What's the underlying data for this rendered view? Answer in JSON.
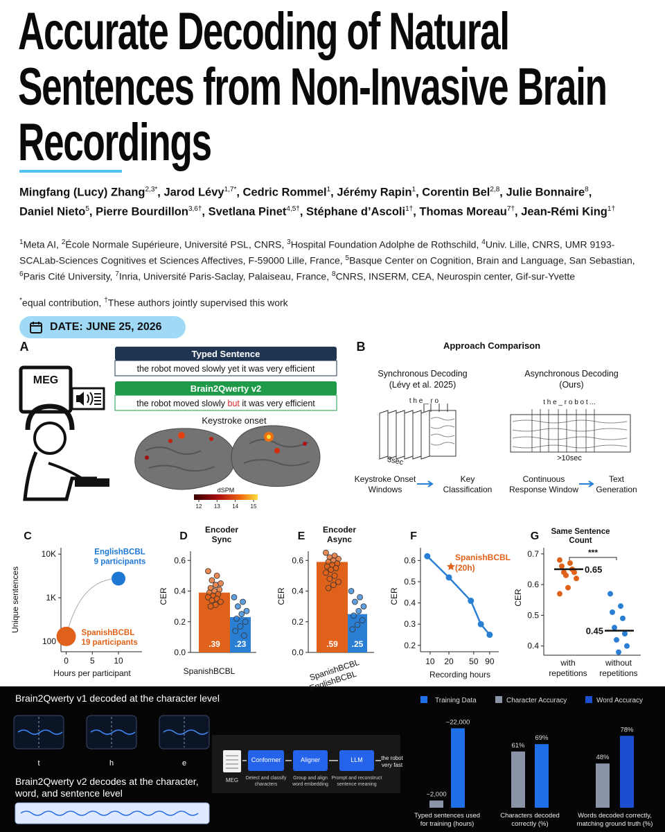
{
  "title": "Accurate Decoding of Natural Sentences from Non-Invasive Brain Recordings",
  "authors": {
    "separator": ", ",
    "list": [
      {
        "name": "Mingfang (Lucy) Zhang",
        "sup": "2,3*"
      },
      {
        "name": "Jarod Lévy",
        "sup": "1,7*"
      },
      {
        "name": "Cedric Rommel",
        "sup": "1"
      },
      {
        "name": "Jérémy Rapin",
        "sup": "1"
      },
      {
        "name": "Corentin Bel",
        "sup": "2,8"
      },
      {
        "name": "Julie Bonnaire",
        "sup": "8"
      },
      {
        "name": "Daniel Nieto",
        "sup": "5"
      },
      {
        "name": "Pierre Bourdillon",
        "sup": "3,6†"
      },
      {
        "name": "Svetlana Pinet",
        "sup": "4,5†"
      },
      {
        "name": "Stéphane d’Ascoli",
        "sup": "1†"
      },
      {
        "name": "Thomas Moreau",
        "sup": "7†"
      },
      {
        "name": "Jean-Rémi King",
        "sup": "1†"
      }
    ]
  },
  "affiliations": [
    {
      "sup": "1",
      "text": "Meta AI, "
    },
    {
      "sup": "2",
      "text": "École Normale Supérieure, Université PSL, CNRS, "
    },
    {
      "sup": "3",
      "text": "Hospital Foundation Adolphe de Rothschild, "
    },
    {
      "sup": "4",
      "text": "Univ. Lille, CNRS, UMR 9193-SCALab-Sciences Cognitives et Sciences Affectives, F-59000 Lille, France, "
    },
    {
      "sup": "5",
      "text": "Basque Center on Cognition, Brain and Language, San Sebastian, "
    },
    {
      "sup": "6",
      "text": "Paris Cité University, "
    },
    {
      "sup": "7",
      "text": "Inria, Université Paris-Saclay, Palaiseau, France, "
    },
    {
      "sup": "8",
      "text": "CNRS, INSERM, CEA, Neurospin center, Gif-sur-Yvette"
    }
  ],
  "notes": [
    {
      "sup": "*",
      "text": "equal contribution, "
    },
    {
      "sup": "†",
      "text": "These authors jointly supervised this work"
    }
  ],
  "date": "DATE: JUNE 25, 2026",
  "figure": {
    "panel_a": {
      "label": "A",
      "device": "MEG",
      "typed": {
        "header": "Typed Sentence",
        "text": "the robot moved slowly yet it was very efficient"
      },
      "decoded": {
        "header": "Brain2Qwerty v2",
        "parts": [
          {
            "text": "the robot moved slowly ",
            "error": false
          },
          {
            "text": "but",
            "error": true
          },
          {
            "text": " it was very efficient",
            "error": false
          }
        ]
      },
      "caption": "Keystroke onset",
      "colorbar": {
        "label": "dSPM",
        "ticks": [
          12,
          13,
          14,
          15
        ]
      }
    },
    "panel_b": {
      "label": "B",
      "title": "Approach Comparison",
      "sync": {
        "title": "Synchronous Decoding",
        "subtitle": "(Lévy et al. 2025)",
        "chars": "t h e _ r o",
        "duration": "3sec",
        "flow": [
          [
            "Keystroke Onset",
            "Windows"
          ],
          [
            "Key",
            "Classification"
          ]
        ]
      },
      "async": {
        "title": "Asynchronous Decoding",
        "subtitle": "(Ours)",
        "chars": "t h e _ r o b o t ...",
        "duration": ">10sec",
        "flow": [
          [
            "Continuous",
            "Response Window"
          ],
          [
            "Text",
            "Generation"
          ]
        ]
      }
    },
    "panel_c": {
      "label": "C",
      "type": "scatter",
      "ylabel": "Unique sentences",
      "xlabel": "Hours per participant",
      "log_y": true,
      "xlim": [
        -1,
        14.5
      ],
      "xticks": [
        0,
        5,
        10
      ],
      "ylim": [
        58,
        14000
      ],
      "yticks": [
        100,
        {
          "value": 1000,
          "label": "1K"
        },
        {
          "value": 10000,
          "label": "10K"
        }
      ],
      "points": [
        {
          "name": "EnglishBCBL",
          "detail": "9 participants",
          "x": 10,
          "y": 2750,
          "color": "#1f77d4"
        },
        {
          "name": "SpanishBCBL",
          "detail": "19 participants",
          "x": 0,
          "y": 130,
          "color": "#e0621a"
        }
      ]
    },
    "panel_d": {
      "label": "D",
      "type": "bar",
      "title": [
        "Encoder",
        "Sync"
      ],
      "ylabel": "CER",
      "ylim": [
        0,
        0.66
      ],
      "yticks": [
        {
          "value": 0,
          "label": "0.0"
        },
        0.2,
        0.4,
        0.6
      ],
      "xlabels": [
        "SpanishBCBL"
      ],
      "series": [
        {
          "color": "#e0621a",
          "value": 0.39,
          "value_label": ".39",
          "points": [
            0.53,
            0.5,
            0.47,
            0.45,
            0.44,
            0.42,
            0.41,
            0.4,
            0.39,
            0.38,
            0.37,
            0.36,
            0.35,
            0.34,
            0.33,
            0.31,
            0.3
          ]
        },
        {
          "color": "#2a7fd4",
          "value": 0.23,
          "value_label": ".23",
          "points": [
            0.36,
            0.33,
            0.3,
            0.27,
            0.25,
            0.22,
            0.2,
            0.17,
            0.14,
            0.11
          ]
        }
      ]
    },
    "panel_e": {
      "label": "E",
      "type": "bar",
      "title": [
        "Encoder",
        "Async"
      ],
      "ylabel": "CER",
      "ylim": [
        0,
        0.66
      ],
      "yticks": [
        {
          "value": 0,
          "label": "0.0"
        },
        0.2,
        0.4,
        0.6
      ],
      "xlabels": [
        "SpanishBCBL",
        "EnglishBCBL"
      ],
      "series": [
        {
          "color": "#e0621a",
          "value": 0.59,
          "value_label": ".59",
          "points": [
            0.65,
            0.63,
            0.62,
            0.61,
            0.6,
            0.59,
            0.58,
            0.57,
            0.56,
            0.55,
            0.54,
            0.52,
            0.5,
            0.48,
            0.46,
            0.44,
            0.42
          ]
        },
        {
          "color": "#2a7fd4",
          "value": 0.25,
          "value_label": ".25",
          "points": [
            0.4,
            0.36,
            0.33,
            0.3,
            0.27,
            0.24,
            0.21,
            0.18,
            0.15
          ]
        }
      ]
    },
    "panel_f": {
      "label": "F",
      "type": "line",
      "ylabel": "CER",
      "xlabel": "Recording hours",
      "log_x": true,
      "xlim": [
        7,
        126
      ],
      "xticks": [
        10,
        20,
        50,
        90
      ],
      "ylim": [
        0.17,
        0.66
      ],
      "yticks": [
        0.2,
        0.3,
        0.4,
        0.5,
        0.6
      ],
      "x": [
        9,
        20,
        45,
        65,
        90
      ],
      "values": [
        0.62,
        0.52,
        0.41,
        0.3,
        0.25
      ],
      "color": "#2a7fd4",
      "annotation": {
        "text": [
          "SpanishBCBL",
          "(20h)"
        ],
        "color": "#e0621a"
      }
    },
    "panel_g": {
      "label": "G",
      "type": "strip",
      "title": [
        "Same Sentence",
        "Count"
      ],
      "ylabel": "CER",
      "ylim": [
        0.37,
        0.72
      ],
      "yticks": [
        0.4,
        0.5,
        0.6,
        0.7
      ],
      "significance": "***",
      "groups": [
        {
          "label": [
            "with",
            "repetitions"
          ],
          "color": "#e0621a",
          "mean": 0.65,
          "points": [
            0.68,
            0.67,
            0.66,
            0.65,
            0.64,
            0.64,
            0.63,
            0.62,
            0.59,
            0.57
          ]
        },
        {
          "label": [
            "without",
            "repetitions"
          ],
          "color": "#2a7fd4",
          "mean": 0.45,
          "points": [
            0.57,
            0.53,
            0.51,
            0.49,
            0.46,
            0.44,
            0.42,
            0.4,
            0.38
          ]
        }
      ]
    }
  },
  "summary": {
    "v1": {
      "heading": "Brain2Qwerty v1 decoded at the character level",
      "letters": [
        "t",
        "h",
        "e"
      ]
    },
    "v2": {
      "heading": [
        "Brain2Qwerty v2 decodes at the character,",
        "word, and sentence level"
      ]
    },
    "pipeline": {
      "input": "MEG",
      "steps": [
        {
          "name": "Conformer",
          "desc": [
            "Detect and classify",
            "characters"
          ]
        },
        {
          "name": "Aligner",
          "desc": [
            "Group and align",
            "word embedding"
          ]
        },
        {
          "name": "LLM",
          "desc": [
            "Prompt and reconstruct",
            "sentence meaning"
          ]
        }
      ],
      "output": [
        "the robot",
        "very fast"
      ]
    },
    "results": {
      "legend": [
        {
          "name": "Training Data",
          "color": "#1f6fe8"
        },
        {
          "name": "Character Accuracy",
          "color": "#8a94a6"
        },
        {
          "name": "Word Accuracy",
          "color": "#1b4fd0"
        }
      ],
      "groups": [
        {
          "caption": [
            "Typed sentences used",
            "for training (hours)"
          ],
          "ylim": [
            0,
            24000
          ],
          "values": [
            2000,
            22000
          ],
          "value_labels": [
            "~2,000",
            "~22,000"
          ],
          "colors": [
            "#8a94a6",
            "#1f6fe8"
          ]
        },
        {
          "caption": [
            "Characters decoded",
            "correctly (%)"
          ],
          "ylim": [
            0,
            94
          ],
          "values": [
            61,
            69
          ],
          "value_labels": [
            "61%",
            "69%"
          ],
          "colors": [
            "#8a94a6",
            "#1f6fe8"
          ]
        },
        {
          "caption": [
            "Words decoded correctly,",
            "matching ground truth (%)"
          ],
          "ylim": [
            0,
            94
          ],
          "values": [
            48,
            78
          ],
          "value_labels": [
            "48%",
            "78%"
          ],
          "colors": [
            "#8a94a6",
            "#1b4fd0"
          ]
        }
      ]
    }
  }
}
